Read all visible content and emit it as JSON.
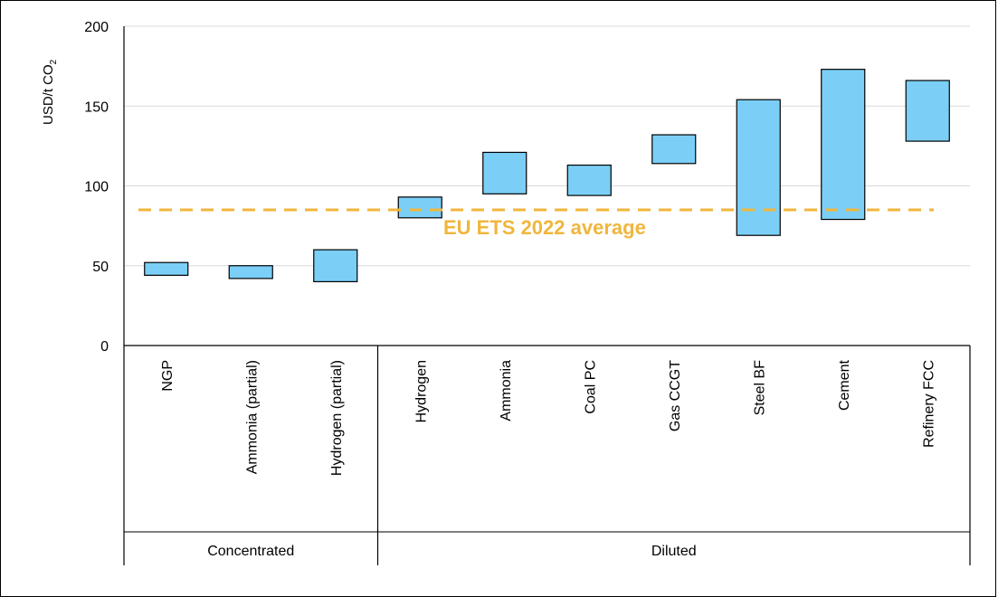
{
  "chart_data": {
    "type": "bar",
    "subtype": "floating-range",
    "ylabel": "USD/t CO",
    "ylabel_subscript": "2",
    "ylim": [
      0,
      200
    ],
    "yticks": [
      0,
      50,
      100,
      150,
      200
    ],
    "grid": true,
    "categories": [
      "NGP",
      "Ammonia (partial)",
      "Hydrogen (partial)",
      "Hydrogen",
      "Ammonia",
      "Coal PC",
      "Gas CCGT",
      "Steel BF",
      "Cement",
      "Refinery FCC"
    ],
    "groups": [
      {
        "label": "Concentrated",
        "count": 3
      },
      {
        "label": "Diluted",
        "count": 7
      }
    ],
    "ranges": [
      [
        44,
        52
      ],
      [
        42,
        50
      ],
      [
        40,
        60
      ],
      [
        80,
        93
      ],
      [
        95,
        121
      ],
      [
        94,
        113
      ],
      [
        114,
        132
      ],
      [
        69,
        154
      ],
      [
        79,
        173
      ],
      [
        128,
        166
      ]
    ],
    "reference_line": {
      "label": "EU ETS 2022 average",
      "value": 85,
      "color": "#F0B63C"
    },
    "bar_color": "#7BCFF7"
  }
}
